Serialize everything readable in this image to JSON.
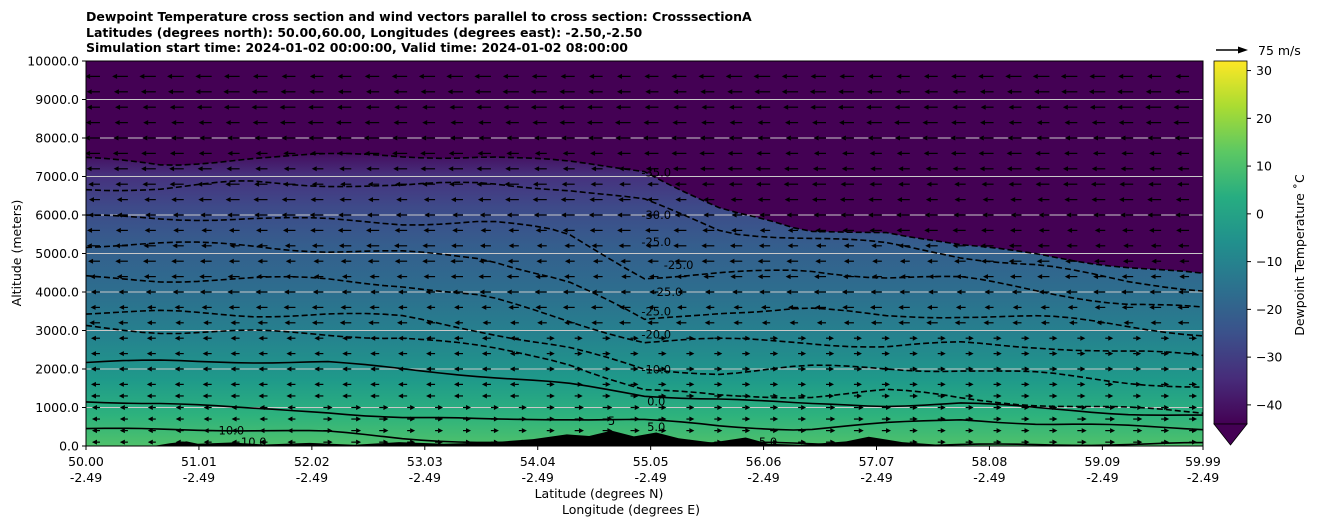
{
  "title_lines": [
    "Dewpoint Temperature cross section and wind vectors parallel to cross section: CrosssectionA",
    "Latitudes (degrees north): 50.00,60.00, Longitudes (degrees east): -2.50,-2.50",
    "Simulation start time: 2024-01-02 00:00:00, Valid time: 2024-01-02 08:00:00"
  ],
  "chart_data": {
    "type": "heatmap",
    "subtype": "filled contour cross section with line contours and wind vectors",
    "xlabel": "Latitude (degrees N)",
    "xlabel2": "Longitude (degrees E)",
    "ylabel": "Altitude (meters)",
    "ylim": [
      0,
      10000
    ],
    "y_ticks": [
      0,
      1000,
      2000,
      3000,
      4000,
      5000,
      6000,
      7000,
      8000,
      9000,
      10000
    ],
    "y_tick_labels": [
      "0.0",
      "1000.0",
      "2000.0",
      "3000.0",
      "4000.0",
      "5000.0",
      "6000.0",
      "7000.0",
      "8000.0",
      "9000.0",
      "10000.0"
    ],
    "x_ticks": [
      {
        "lat": "50.00",
        "lon": "-2.49"
      },
      {
        "lat": "51.01",
        "lon": "-2.49"
      },
      {
        "lat": "52.02",
        "lon": "-2.49"
      },
      {
        "lat": "53.03",
        "lon": "-2.49"
      },
      {
        "lat": "54.04",
        "lon": "-2.49"
      },
      {
        "lat": "55.05",
        "lon": "-2.49"
      },
      {
        "lat": "56.06",
        "lon": "-2.49"
      },
      {
        "lat": "57.07",
        "lon": "-2.49"
      },
      {
        "lat": "58.08",
        "lon": "-2.49"
      },
      {
        "lat": "59.09",
        "lon": "-2.49"
      },
      {
        "lat": "59.99",
        "lon": "-2.49"
      }
    ],
    "grid": "horizontal",
    "colorbar": {
      "label": "Dewpoint Temperature ˚C",
      "min": -44,
      "max": 32,
      "ticks": [
        -40,
        -30,
        -20,
        -10,
        0,
        10,
        20,
        30
      ],
      "tick_labels": [
        "−40",
        "−30",
        "−20",
        "−10",
        "0",
        "10",
        "20",
        "30"
      ],
      "extend": "min",
      "colormap": "viridis",
      "colors": [
        "#440154",
        "#472c7a",
        "#3b518b",
        "#2c718e",
        "#21908d",
        "#27ad81",
        "#5cc863",
        "#aadc32",
        "#fde725"
      ]
    },
    "quiver_key": {
      "label": "75 m/s",
      "value": 75
    },
    "terrain_color": "#000000",
    "contour_labels": [
      {
        "text": "-35.0",
        "lat": 55.1,
        "alt": 7100
      },
      {
        "text": "-30.0",
        "lat": 55.1,
        "alt": 6000
      },
      {
        "text": "-25.0",
        "lat": 55.1,
        "alt": 5300
      },
      {
        "text": "-25.0",
        "lat": 55.3,
        "alt": 4700
      },
      {
        "text": "-25.0",
        "lat": 55.2,
        "alt": 4000
      },
      {
        "text": "-25.0",
        "lat": 55.1,
        "alt": 3500
      },
      {
        "text": "-20.0",
        "lat": 55.1,
        "alt": 2900
      },
      {
        "text": "-10.0",
        "lat": 55.1,
        "alt": 1990
      },
      {
        "text": "0.0",
        "lat": 55.1,
        "alt": 1150
      },
      {
        "text": "5.0",
        "lat": 55.1,
        "alt": 500
      },
      {
        "text": "5",
        "lat": 54.7,
        "alt": 650
      },
      {
        "text": "10.0",
        "lat": 51.3,
        "alt": 400
      },
      {
        "text": "10.0",
        "lat": 51.5,
        "alt": 100
      },
      {
        "text": "5.0",
        "lat": 56.1,
        "alt": 100
      }
    ],
    "contours": [
      {
        "level": -35,
        "alt": [
          7500,
          7300,
          7500,
          7500,
          7500,
          7550,
          7400,
          7200,
          6100,
          5500,
          5600,
          5200,
          5000,
          4700,
          4400
        ],
        "dashed": true
      },
      {
        "level": -30,
        "alt": [
          6700,
          6700,
          6900,
          6800,
          6700,
          6800,
          6700,
          6400,
          5600,
          5400,
          5200,
          4900,
          4700,
          4300,
          4100
        ],
        "dashed": true
      },
      {
        "level": -25,
        "alt": [
          5900,
          5900,
          5950,
          5900,
          5800,
          5800,
          5500,
          4400,
          4500,
          4600,
          4400,
          4300,
          4000,
          3700,
          3600
        ],
        "dashed": true
      },
      {
        "level": -20,
        "alt": [
          5200,
          5200,
          5200,
          5100,
          5050,
          4900,
          4300,
          3200,
          3500,
          3600,
          3400,
          3400,
          3300,
          3100,
          2900
        ],
        "dashed": true
      },
      {
        "level": -15,
        "alt": [
          4400,
          4300,
          4300,
          4300,
          4200,
          3900,
          3300,
          2700,
          2700,
          2700,
          2600,
          2700,
          2600,
          2400,
          2300
        ],
        "dashed": true
      },
      {
        "level": -10,
        "alt": [
          3500,
          3500,
          3400,
          3400,
          3300,
          3000,
          2600,
          2000,
          1900,
          2000,
          2000,
          2000,
          1900,
          1700,
          1500
        ],
        "dashed": true
      },
      {
        "level": -5,
        "alt": [
          3100,
          3000,
          3000,
          2900,
          2800,
          2500,
          2200,
          1500,
          1300,
          1300,
          1400,
          1200,
          1100,
          1000,
          900
        ],
        "dashed": true
      },
      {
        "level": 0,
        "alt": [
          2150,
          2200,
          2200,
          2200,
          2000,
          1800,
          1600,
          1300,
          1250,
          1100,
          1050,
          1100,
          950,
          850,
          800
        ],
        "dashed": false
      },
      {
        "level": 5,
        "alt": [
          1150,
          1100,
          950,
          900,
          750,
          700,
          700,
          650,
          500,
          450,
          600,
          700,
          550,
          500,
          450
        ],
        "dashed": false
      },
      {
        "level": 10,
        "alt": [
          450,
          430,
          400,
          350,
          200,
          120,
          80,
          60,
          60,
          40,
          30,
          40,
          40,
          40,
          40
        ],
        "dashed": false
      }
    ],
    "vector_rows_alt": [
      100,
      400,
      700,
      1000,
      1300,
      1600,
      2000,
      2400,
      2800,
      3200,
      3600,
      4000,
      4400,
      4800,
      5200,
      5600,
      6000,
      6400,
      6800,
      7200,
      7600,
      8000,
      8400,
      8800,
      9200,
      9600
    ],
    "vector_direction_note": "northward component; negative points left"
  }
}
